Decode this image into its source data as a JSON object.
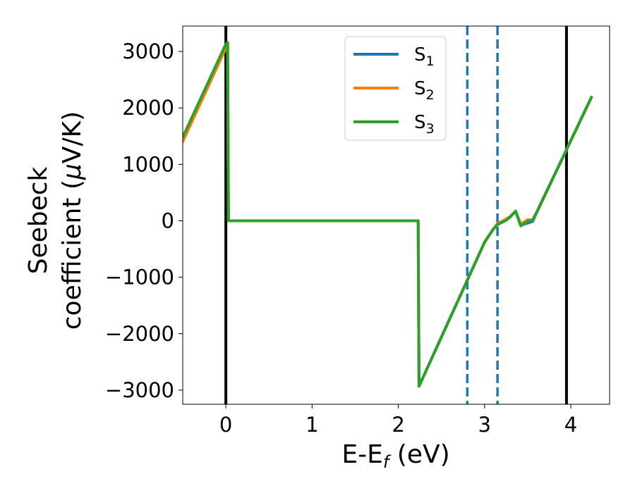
{
  "chart_data": {
    "type": "line",
    "xlabel": "E-E",
    "xlabel_sub": "f",
    "xlabel_unit": " (eV)",
    "ylabel_line1": "Seebeck",
    "ylabel_line2": "coefficient  (",
    "ylabel_mu": "μ",
    "ylabel_unit": "V/K)",
    "xlim": [
      -0.5,
      4.45
    ],
    "ylim": [
      -3250,
      3450
    ],
    "x_ticks": [
      {
        "value": 0,
        "label": "0"
      },
      {
        "value": 1,
        "label": "1"
      },
      {
        "value": 2,
        "label": "2"
      },
      {
        "value": 3,
        "label": "3"
      },
      {
        "value": 4,
        "label": "4"
      }
    ],
    "y_ticks": [
      {
        "value": 3000,
        "label": "3000"
      },
      {
        "value": 2000,
        "label": "2000"
      },
      {
        "value": 1000,
        "label": "1000"
      },
      {
        "value": 0,
        "label": "0"
      },
      {
        "value": -1000,
        "label": "−1000"
      },
      {
        "value": -2000,
        "label": "−2000"
      },
      {
        "value": -3000,
        "label": "−3000"
      }
    ],
    "grid": false,
    "legend_position": "top-center",
    "series": [
      {
        "name": "S",
        "sub": "1",
        "color": "#1f77b4",
        "points": [
          [
            -0.5,
            1450
          ],
          [
            0.0,
            3100
          ],
          [
            0.02,
            3150
          ],
          [
            0.03,
            0
          ],
          [
            2.23,
            0
          ],
          [
            2.24,
            -2930
          ],
          [
            3.0,
            -380
          ],
          [
            3.1,
            -150
          ],
          [
            3.15,
            -60
          ],
          [
            3.25,
            20
          ],
          [
            3.3,
            80
          ],
          [
            3.36,
            170
          ],
          [
            3.42,
            -80
          ],
          [
            3.5,
            -40
          ],
          [
            3.56,
            -10
          ],
          [
            3.6,
            130
          ],
          [
            4.24,
            2190
          ]
        ]
      },
      {
        "name": "S",
        "sub": "2",
        "color": "#ff7f0e",
        "points": [
          [
            -0.5,
            1400
          ],
          [
            0.0,
            3060
          ],
          [
            0.02,
            3150
          ],
          [
            0.03,
            0
          ],
          [
            2.23,
            0
          ],
          [
            2.24,
            -2930
          ],
          [
            3.0,
            -380
          ],
          [
            3.1,
            -150
          ],
          [
            3.15,
            -50
          ],
          [
            3.25,
            30
          ],
          [
            3.3,
            80
          ],
          [
            3.36,
            170
          ],
          [
            3.42,
            -60
          ],
          [
            3.5,
            20
          ],
          [
            3.56,
            10
          ],
          [
            3.6,
            130
          ],
          [
            4.24,
            2190
          ]
        ]
      },
      {
        "name": "S",
        "sub": "3",
        "color": "#2ca02c",
        "points": [
          [
            -0.5,
            1480
          ],
          [
            0.0,
            3130
          ],
          [
            0.02,
            3160
          ],
          [
            0.03,
            0
          ],
          [
            2.23,
            0
          ],
          [
            2.24,
            -2930
          ],
          [
            3.0,
            -380
          ],
          [
            3.1,
            -150
          ],
          [
            3.15,
            -70
          ],
          [
            3.25,
            10
          ],
          [
            3.3,
            70
          ],
          [
            3.36,
            170
          ],
          [
            3.42,
            -90
          ],
          [
            3.5,
            -10
          ],
          [
            3.56,
            20
          ],
          [
            3.6,
            140
          ],
          [
            4.24,
            2190
          ]
        ]
      }
    ],
    "vertical_lines": [
      {
        "x": 0.0,
        "style": "solid",
        "color": "#000000"
      },
      {
        "x": 3.95,
        "style": "solid",
        "color": "#000000"
      },
      {
        "x": 2.8,
        "style": "dashed",
        "color": "#1f77b4"
      },
      {
        "x": 3.15,
        "style": "dashed",
        "color": "#1f77b4"
      }
    ]
  }
}
